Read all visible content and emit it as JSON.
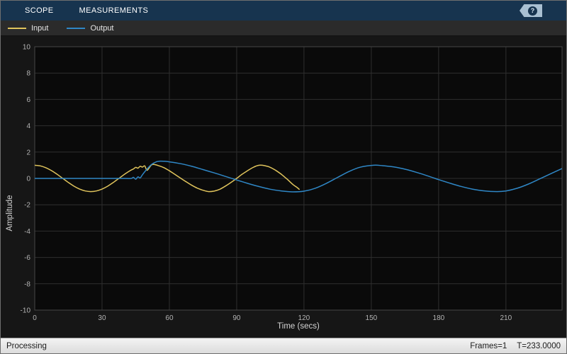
{
  "toolbar": {
    "tabs": [
      {
        "label": "SCOPE"
      },
      {
        "label": "MEASUREMENTS"
      }
    ],
    "help_label": "?"
  },
  "legend": {
    "items": [
      {
        "label": "Input",
        "color": "#e0c45c"
      },
      {
        "label": "Output",
        "color": "#2f87c6"
      }
    ]
  },
  "status_bar": {
    "left": "Processing",
    "frames": "Frames=1",
    "time": "T=233.0000"
  },
  "chart_data": {
    "type": "line",
    "title": "",
    "xlabel": "Time (secs)",
    "ylabel": "Amplitude",
    "xlim": [
      0,
      235
    ],
    "ylim": [
      -10,
      10
    ],
    "xticks": [
      0,
      30,
      60,
      90,
      120,
      150,
      180,
      210
    ],
    "yticks": [
      -10,
      -8,
      -6,
      -4,
      -2,
      0,
      2,
      4,
      6,
      8,
      10
    ],
    "grid": true,
    "legend_position": "top-left",
    "background": "#0a0a0a",
    "grid_color": "#2f2f2f",
    "series": [
      {
        "name": "Input",
        "color": "#e0c45c",
        "points": [
          [
            0,
            1.0
          ],
          [
            2.5,
            0.95
          ],
          [
            5,
            0.81
          ],
          [
            7.5,
            0.59
          ],
          [
            10,
            0.31
          ],
          [
            12.5,
            0
          ],
          [
            15,
            -0.31
          ],
          [
            17.5,
            -0.59
          ],
          [
            20,
            -0.81
          ],
          [
            22.5,
            -0.95
          ],
          [
            25,
            -1.0
          ],
          [
            27.5,
            -0.95
          ],
          [
            30,
            -0.81
          ],
          [
            32.5,
            -0.59
          ],
          [
            35,
            -0.31
          ],
          [
            37.5,
            0
          ],
          [
            40,
            0.31
          ],
          [
            42.5,
            0.59
          ],
          [
            44,
            0.72
          ],
          [
            45,
            0.84
          ],
          [
            46,
            0.78
          ],
          [
            47,
            0.92
          ],
          [
            48,
            0.86
          ],
          [
            49,
            0.95
          ],
          [
            50,
            0.62
          ],
          [
            51,
            0.8
          ],
          [
            52,
            1.02
          ],
          [
            53,
            1.06
          ],
          [
            55,
            0.98
          ],
          [
            57.5,
            0.82
          ],
          [
            60,
            0.58
          ],
          [
            62.5,
            0.3
          ],
          [
            65,
            0.02
          ],
          [
            67.5,
            -0.26
          ],
          [
            70,
            -0.52
          ],
          [
            72.5,
            -0.74
          ],
          [
            75,
            -0.9
          ],
          [
            77.5,
            -1.0
          ],
          [
            80,
            -0.96
          ],
          [
            82.5,
            -0.82
          ],
          [
            85,
            -0.58
          ],
          [
            87.5,
            -0.3
          ],
          [
            90,
            0.0
          ],
          [
            92.5,
            0.33
          ],
          [
            95,
            0.6
          ],
          [
            97.5,
            0.85
          ],
          [
            100,
            1.0
          ],
          [
            102.5,
            0.97
          ],
          [
            105,
            0.84
          ],
          [
            107.5,
            0.6
          ],
          [
            110,
            0.3
          ],
          [
            112.5,
            -0.06
          ],
          [
            115,
            -0.45
          ],
          [
            117,
            -0.7
          ],
          [
            118,
            -0.85
          ]
        ]
      },
      {
        "name": "Output",
        "color": "#2f87c6",
        "points": [
          [
            0,
            0
          ],
          [
            10,
            0
          ],
          [
            20,
            0
          ],
          [
            30,
            0
          ],
          [
            40,
            0
          ],
          [
            43,
            0
          ],
          [
            44,
            0.08
          ],
          [
            45,
            -0.06
          ],
          [
            46,
            0.12
          ],
          [
            47,
            0.04
          ],
          [
            48,
            0.28
          ],
          [
            50,
            0.7
          ],
          [
            52,
            1.05
          ],
          [
            54,
            1.25
          ],
          [
            56,
            1.31
          ],
          [
            58,
            1.3
          ],
          [
            60,
            1.26
          ],
          [
            65,
            1.12
          ],
          [
            70,
            0.92
          ],
          [
            75,
            0.67
          ],
          [
            80,
            0.42
          ],
          [
            85,
            0.15
          ],
          [
            90,
            -0.12
          ],
          [
            95,
            -0.38
          ],
          [
            100,
            -0.62
          ],
          [
            105,
            -0.82
          ],
          [
            110,
            -0.95
          ],
          [
            115,
            -1.02
          ],
          [
            120,
            -0.97
          ],
          [
            125,
            -0.75
          ],
          [
            130,
            -0.37
          ],
          [
            135,
            0.08
          ],
          [
            140,
            0.52
          ],
          [
            145,
            0.85
          ],
          [
            151,
            1.0
          ],
          [
            155,
            0.97
          ],
          [
            160,
            0.87
          ],
          [
            165,
            0.7
          ],
          [
            170,
            0.47
          ],
          [
            175,
            0.2
          ],
          [
            180,
            -0.09
          ],
          [
            185,
            -0.36
          ],
          [
            190,
            -0.61
          ],
          [
            195,
            -0.81
          ],
          [
            200,
            -0.94
          ],
          [
            206,
            -1.0
          ],
          [
            210,
            -0.95
          ],
          [
            215,
            -0.75
          ],
          [
            220,
            -0.43
          ],
          [
            225,
            -0.04
          ],
          [
            230,
            0.36
          ],
          [
            235,
            0.75
          ]
        ]
      }
    ]
  }
}
